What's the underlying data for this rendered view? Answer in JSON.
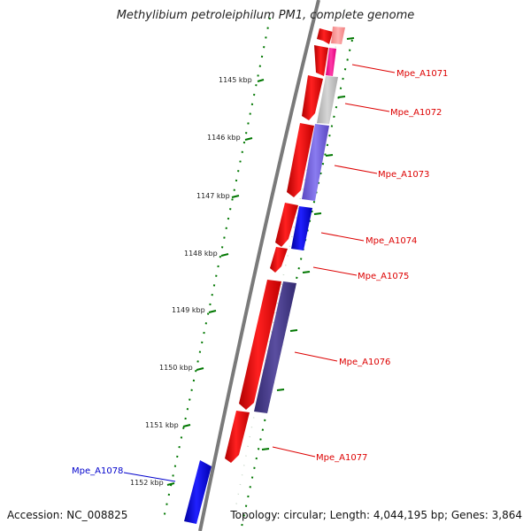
{
  "title": "Methylibium petroleiphilum PM1, complete genome",
  "footer": {
    "accession": "Accession: NC_008825",
    "summary": "Topology: circular; Length: 4,044,195 bp; Genes: 3,864"
  },
  "kbp_ticks": [
    "1145 kbp",
    "1146 kbp",
    "1147 kbp",
    "1148 kbp",
    "1149 kbp",
    "1150 kbp",
    "1151 kbp",
    "1152 kbp"
  ],
  "genes": [
    {
      "label": "Mpe_A1071",
      "color": "#dd0000"
    },
    {
      "label": "Mpe_A1072",
      "color": "#dd0000"
    },
    {
      "label": "Mpe_A1073",
      "color": "#dd0000"
    },
    {
      "label": "Mpe_A1074",
      "color": "#dd0000"
    },
    {
      "label": "Mpe_A1075",
      "color": "#dd0000"
    },
    {
      "label": "Mpe_A1076",
      "color": "#dd0000"
    },
    {
      "label": "Mpe_A1077",
      "color": "#dd0000"
    },
    {
      "label": "Mpe_A1078",
      "color": "#0000cc"
    }
  ],
  "colors": {
    "forward_cds": "#ff0000",
    "reverse_cds": "#0000ee",
    "backbone": "#808080",
    "gc_skew_dots": "#007700",
    "cog_purple": "#7060d8",
    "cog_dark": "#4a3f88",
    "cog_gray": "#c0c0c0",
    "cog_pink": "#ff1493"
  }
}
